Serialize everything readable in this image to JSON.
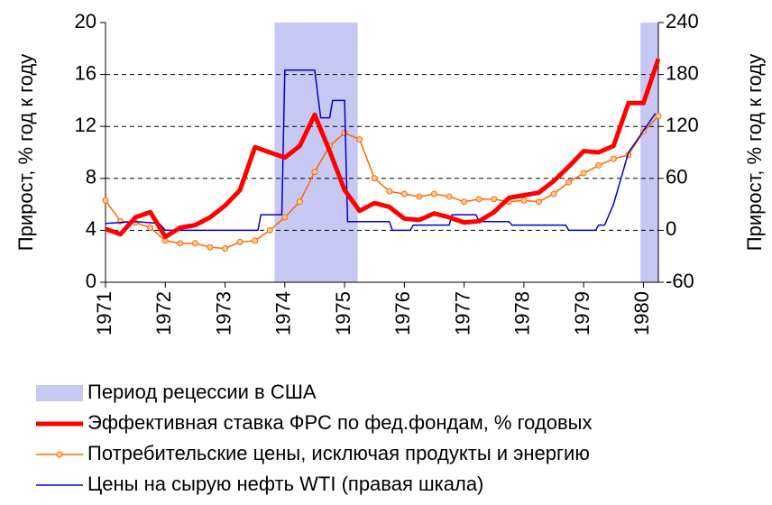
{
  "chart_data": {
    "type": "line",
    "y_label": "Прирост, % год к году",
    "y2_label": "Прирост, % год к году",
    "xlim": [
      1971,
      1980.25
    ],
    "xticks": [
      1971,
      1972,
      1973,
      1974,
      1975,
      1976,
      1977,
      1978,
      1979,
      1980
    ],
    "ylim": [
      0,
      20
    ],
    "yticks": [
      0,
      4,
      8,
      12,
      16,
      20
    ],
    "y2lim": [
      -60,
      240
    ],
    "y2ticks": [
      -60,
      0,
      60,
      120,
      180,
      240
    ],
    "grid": true,
    "recession": {
      "name": "Период рецессии в США",
      "color": "#c8c8f5",
      "periods": [
        [
          1973.83,
          1975.22
        ],
        [
          1979.95,
          1980.25
        ]
      ]
    },
    "x": [
      1971,
      1971.25,
      1971.5,
      1971.75,
      1972,
      1972.25,
      1972.5,
      1972.75,
      1973,
      1973.25,
      1973.5,
      1973.75,
      1974,
      1974.25,
      1974.5,
      1974.75,
      1975,
      1975.25,
      1975.5,
      1975.75,
      1976,
      1976.25,
      1976.5,
      1976.75,
      1977,
      1977.25,
      1977.5,
      1977.75,
      1978,
      1978.25,
      1978.5,
      1978.75,
      1979,
      1979.25,
      1979.5,
      1979.75,
      1980,
      1980.25
    ],
    "series": [
      {
        "name": "Эффективная ставка ФРС по фед.фондам, % годовых",
        "color": "#ff0000",
        "width": 5,
        "values": [
          4.1,
          3.7,
          5.0,
          5.4,
          3.5,
          4.2,
          4.4,
          5.0,
          5.9,
          7.1,
          10.4,
          10.0,
          9.6,
          10.5,
          12.9,
          10.1,
          7.1,
          5.5,
          6.1,
          5.8,
          4.9,
          4.8,
          5.3,
          5.0,
          4.6,
          4.7,
          5.4,
          6.5,
          6.7,
          6.9,
          7.8,
          8.9,
          10.1,
          10.0,
          10.5,
          13.8,
          13.8,
          17.2
        ]
      },
      {
        "name": "Потребительские цены, исключая продукты и энергию",
        "color": "#ff6600",
        "width": 1.5,
        "markers": true,
        "values": [
          6.3,
          4.7,
          4.6,
          4.2,
          3.2,
          3.0,
          3.0,
          2.7,
          2.6,
          3.1,
          3.2,
          4.0,
          5.0,
          6.2,
          8.5,
          10.5,
          11.5,
          11.0,
          8.0,
          7.0,
          6.8,
          6.6,
          6.8,
          6.6,
          6.2,
          6.4,
          6.4,
          6.2,
          6.3,
          6.2,
          6.8,
          7.7,
          8.4,
          9.0,
          9.5,
          9.8,
          11.6,
          12.8
        ]
      },
      {
        "name": "Цены на сырую нефть WTI (правая шкала)",
        "color": "#0000cc",
        "width": 1.5,
        "axis": "y2",
        "x": [
          1971,
          1971.5,
          1971.9,
          1972,
          1973.55,
          1973.6,
          1973.95,
          1974,
          1974.5,
          1974.6,
          1974.75,
          1974.8,
          1975,
          1975.05,
          1975.75,
          1975.8,
          1976.1,
          1976.15,
          1976.75,
          1976.8,
          1977.2,
          1977.25,
          1977.75,
          1977.8,
          1978.7,
          1978.75,
          1979.2,
          1979.25,
          1979.35,
          1979.5,
          1979.75,
          1980,
          1980.2
        ],
        "values": [
          8,
          10,
          8,
          0,
          0,
          18,
          18,
          185,
          185,
          130,
          130,
          150,
          150,
          10,
          10,
          0,
          0,
          6,
          6,
          18,
          18,
          10,
          10,
          6,
          6,
          0,
          0,
          6,
          6,
          30,
          90,
          115,
          135
        ]
      }
    ]
  }
}
